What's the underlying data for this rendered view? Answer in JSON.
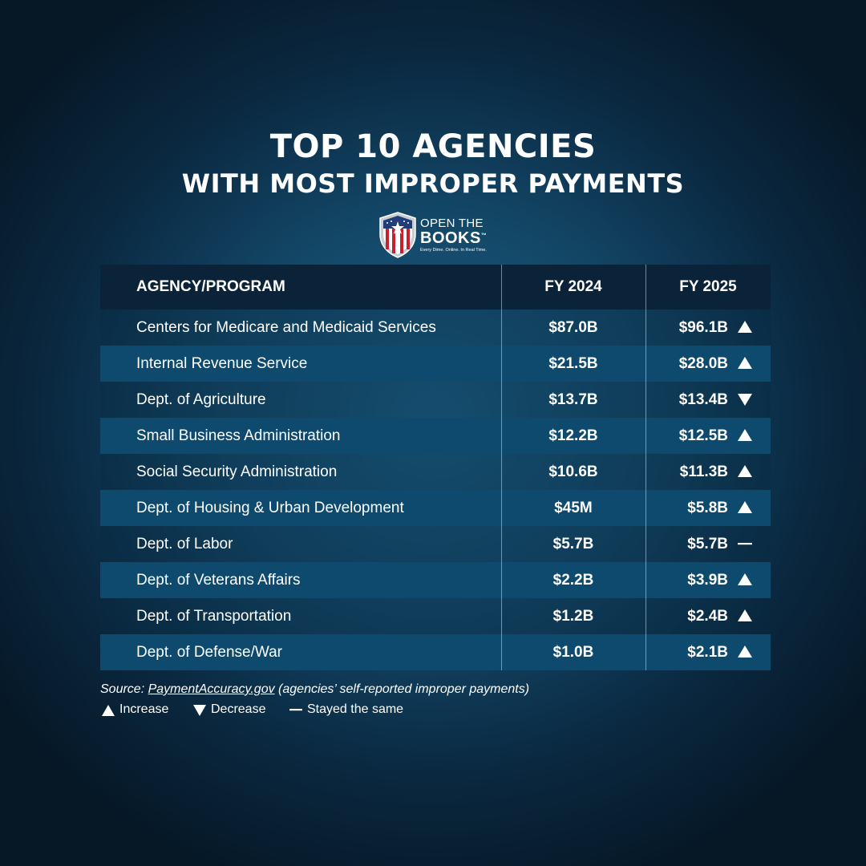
{
  "title_line1": "TOP 10 AGENCIES",
  "title_line2": "WITH MOST IMPROPER PAYMENTS",
  "logo": {
    "line1": "OPEN THE",
    "line2": "BOOKS",
    "tm": "™",
    "tagline": "Every Dime. Online. In Real Time."
  },
  "colors": {
    "background": "#134767",
    "header_bg": "#0a2338",
    "row_highlight": "#0e4a6e",
    "text": "#ffffff"
  },
  "chart_data": {
    "type": "table",
    "columns": [
      "AGENCY/PROGRAM",
      "FY 2024",
      "FY 2025"
    ],
    "rows": [
      {
        "agency": "Centers for Medicare and Medicaid Services",
        "fy2024": "$87.0B",
        "fy2025": "$96.1B",
        "trend": "up"
      },
      {
        "agency": "Internal Revenue Service",
        "fy2024": "$21.5B",
        "fy2025": "$28.0B",
        "trend": "up"
      },
      {
        "agency": "Dept. of Agriculture",
        "fy2024": "$13.7B",
        "fy2025": "$13.4B",
        "trend": "down"
      },
      {
        "agency": "Small Business Administration",
        "fy2024": "$12.2B",
        "fy2025": "$12.5B",
        "trend": "up"
      },
      {
        "agency": "Social Security Administration",
        "fy2024": "$10.6B",
        "fy2025": "$11.3B",
        "trend": "up"
      },
      {
        "agency": "Dept. of Housing & Urban Development",
        "fy2024": "$45M",
        "fy2025": "$5.8B",
        "trend": "up"
      },
      {
        "agency": "Dept. of Labor",
        "fy2024": "$5.7B",
        "fy2025": "$5.7B",
        "trend": "same"
      },
      {
        "agency": "Dept. of Veterans Affairs",
        "fy2024": "$2.2B",
        "fy2025": "$3.9B",
        "trend": "up"
      },
      {
        "agency": "Dept. of Transportation",
        "fy2024": "$1.2B",
        "fy2025": "$2.4B",
        "trend": "up"
      },
      {
        "agency": "Dept. of Defense/War",
        "fy2024": "$1.0B",
        "fy2025": "$2.1B",
        "trend": "up"
      }
    ]
  },
  "source": {
    "prefix": "Source: ",
    "link": "PaymentAccuracy.gov",
    "suffix": " (agencies’ self-reported improper payments)"
  },
  "legend": {
    "increase": "Increase",
    "decrease": "Decrease",
    "same": "Stayed the same"
  }
}
